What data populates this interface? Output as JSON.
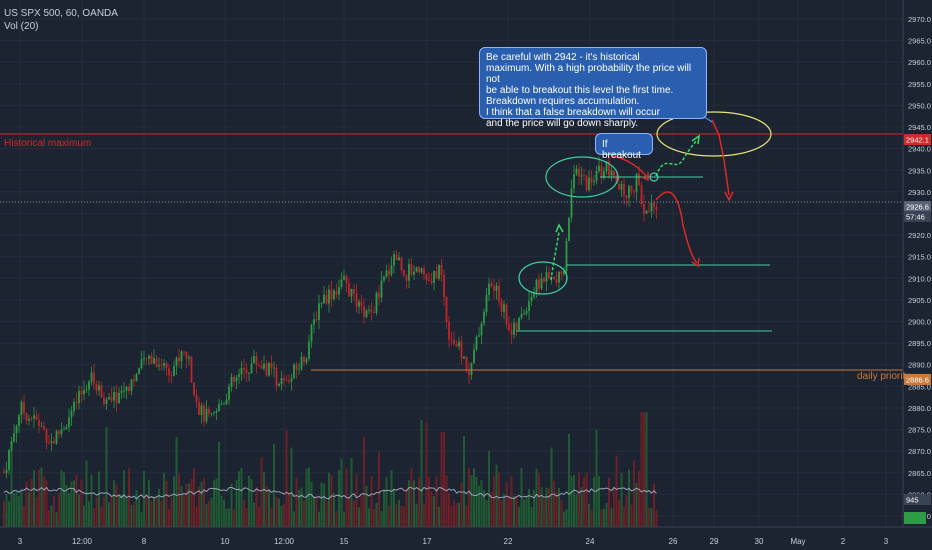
{
  "header": {
    "symbol_line": "US SPX 500, 60, OANDA",
    "volume_line": "Vol (20)"
  },
  "annotations": {
    "main_note": "Be careful with 2942 - it's historical\nmaximum. With a high probability the price will not\nbe able to breakout this level the first time.\nBreakdown requires accumulation.\nI think that a false breakdown will occur\nand the price will go down sharply.",
    "breakout_note": "If breakout",
    "historical_max_label": "Historical maximum",
    "daily_priority_label": "daily priority"
  },
  "colors": {
    "background": "#1c2331",
    "up": "#2e9c44",
    "down": "#c0262a",
    "resistance": "#d12a2a",
    "support": "#3fcfa0",
    "daily": "#c97a3a",
    "note_fill": "#2a5fb0",
    "ellipse_cyan": "#3fcfa0",
    "ellipse_yellow": "#e8e67a"
  },
  "chart_data": {
    "type": "candlestick",
    "title": "US SPX 500, 60, OANDA",
    "ylim": [
      2852,
      2975
    ],
    "y_ticks": [
      2855.0,
      2860.0,
      2865.0,
      2870.0,
      2875.0,
      2880.0,
      2885.0,
      2890.0,
      2895.0,
      2900.0,
      2905.0,
      2910.0,
      2915.0,
      2920.0,
      2925.0,
      2930.0,
      2935.0,
      2940.0,
      2945.0,
      2950.0,
      2955.0,
      2960.0,
      2965.0,
      2970.0
    ],
    "x_ticks": [
      "3",
      "12:00",
      "8",
      "10",
      "12:00",
      "15",
      "17",
      "22",
      "24",
      "26",
      "29",
      "30",
      "May",
      "2",
      "3"
    ],
    "price_tags": [
      {
        "label": "2942.1",
        "value": 2942.1,
        "kind": "resistance"
      },
      {
        "label": "2926.6",
        "value": 2926.6,
        "kind": "last"
      },
      {
        "label": "57:46",
        "value": 2924.0,
        "kind": "countdown"
      },
      {
        "label": "2886.6",
        "value": 2886.6,
        "kind": "daily"
      }
    ],
    "volume_tag": "945",
    "levels": {
      "historical_maximum": 2942.1,
      "last_price": 2926.6,
      "daily_priority": 2886.6,
      "support_upper": 2932.9,
      "support_mid": 2911.3,
      "support_low": 2896.0
    },
    "key_points": [
      {
        "label": "start",
        "value": 2865
      },
      {
        "label": "high 3rd",
        "value": 2882
      },
      {
        "label": "rally to 12:00 (8th)",
        "value": 2893
      },
      {
        "label": "low 10th",
        "value": 2878
      },
      {
        "label": "high 15th",
        "value": 2911
      },
      {
        "label": "peak 17th",
        "value": 2919
      },
      {
        "label": "low 17th",
        "value": 2888
      },
      {
        "label": "consolidation 22nd",
        "value": 2908
      },
      {
        "label": "breakout high 23rd",
        "value": 2936
      },
      {
        "label": "last",
        "value": 2926.6
      }
    ]
  }
}
